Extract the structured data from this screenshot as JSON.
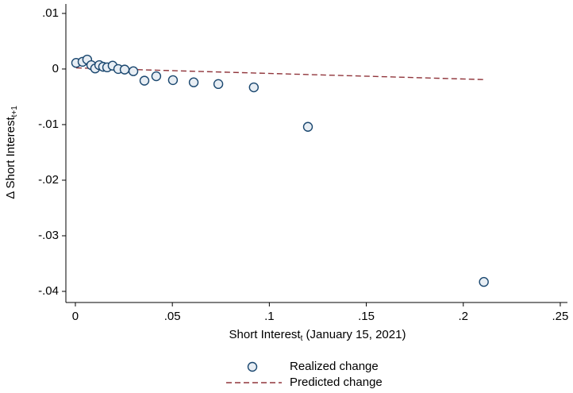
{
  "chart_data": {
    "type": "scatter",
    "x_label": {
      "text": "Short Interest",
      "subscript": "t",
      "suffix": " (January 15, 2021)"
    },
    "y_label": {
      "text": "Δ Short Interest",
      "subscript": "t+1"
    },
    "xlim": [
      -0.0049,
      0.2537
    ],
    "ylim": [
      -0.042,
      0.0117
    ],
    "xticks": [
      0,
      {
        "value": 0.05,
        "label": ".05"
      },
      {
        "value": 0.1,
        "label": ".1"
      },
      {
        "value": 0.15,
        "label": ".15"
      },
      {
        "value": 0.2,
        "label": ".2"
      },
      {
        "value": 0.25,
        "label": ".25"
      }
    ],
    "yticks": [
      {
        "value": 0.01,
        "label": ".01"
      },
      0,
      {
        "value": -0.01,
        "label": "-.01"
      },
      {
        "value": -0.02,
        "label": "-.02"
      },
      {
        "value": -0.03,
        "label": "-.03"
      },
      {
        "value": -0.04,
        "label": "-.04"
      }
    ],
    "series": [
      {
        "name": "Realized change",
        "type": "scatter",
        "color": "#1a476f",
        "x": [
          0.0004,
          0.0037,
          0.0061,
          0.0082,
          0.0102,
          0.0123,
          0.0143,
          0.0164,
          0.0192,
          0.0221,
          0.0254,
          0.0299,
          0.0356,
          0.0417,
          0.0503,
          0.061,
          0.0737,
          0.092,
          0.1199,
          0.2106
        ],
        "values": [
          0.0011,
          0.0013,
          0.0017,
          0.0007,
          0.0001,
          0.0007,
          0.0004,
          0.0003,
          0.0006,
          0.0,
          -0.0001,
          -0.0004,
          -0.0021,
          -0.0013,
          -0.002,
          -0.0024,
          -0.0027,
          -0.0033,
          -0.0104,
          -0.0383
        ]
      },
      {
        "name": "Predicted change",
        "type": "line",
        "color": "#90353b",
        "x": [
          0.0004,
          0.2106
        ],
        "values": [
          0.0002,
          -0.0019
        ]
      }
    ]
  }
}
